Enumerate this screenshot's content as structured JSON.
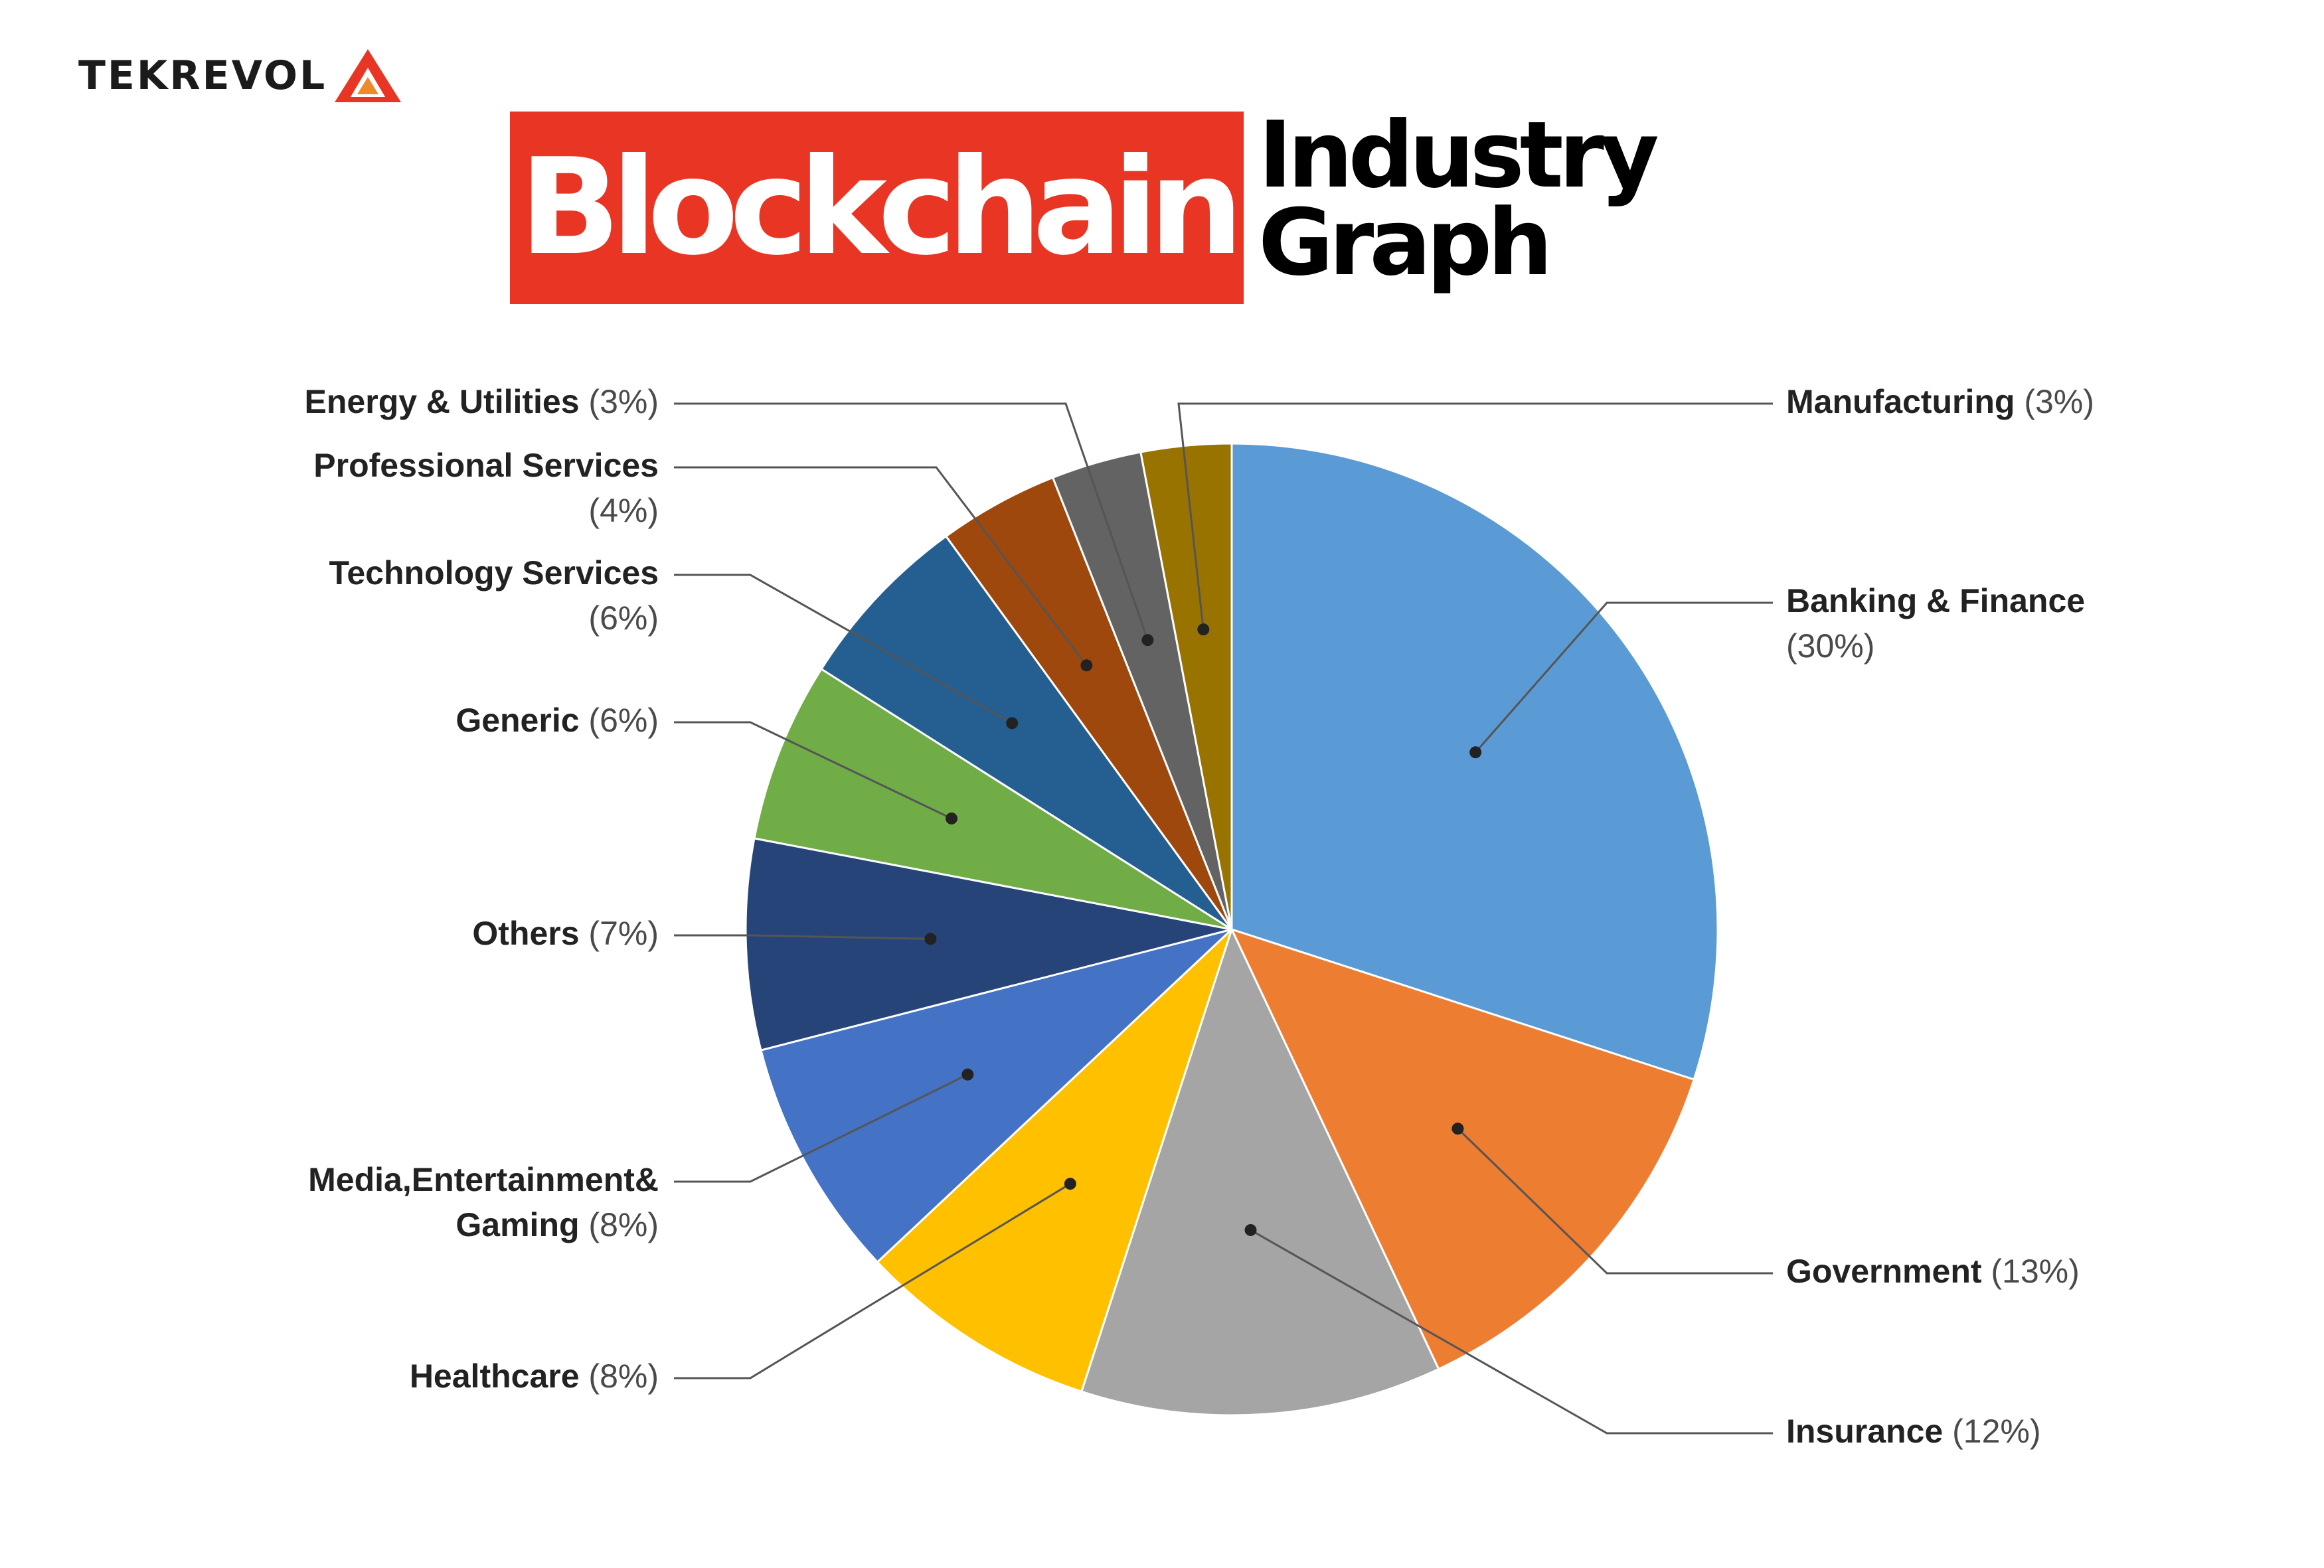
{
  "brand": {
    "name": "TEKREVOL",
    "logo_icon": "triangle-logo-icon",
    "accent": "#e93524"
  },
  "title": {
    "highlight": "Blockchain",
    "line1": "Industry",
    "line2": "Graph"
  },
  "chart_data": {
    "type": "pie",
    "slices": [
      {
        "label": "Banking & Finance",
        "pct_text": "(30%)",
        "value": 30,
        "color": "#5b9bd5"
      },
      {
        "label": "Government",
        "pct_text": "(13%)",
        "value": 13,
        "color": "#ed7d31"
      },
      {
        "label": "Insurance",
        "pct_text": "(12%)",
        "value": 12,
        "color": "#a5a5a5"
      },
      {
        "label": "Healthcare",
        "pct_text": "(8%)",
        "value": 8,
        "color": "#ffc000"
      },
      {
        "label": "Media,Entertainment&",
        "label2": "Gaming",
        "pct_text": "(8%)",
        "value": 8,
        "color": "#4472c4"
      },
      {
        "label": "Others",
        "pct_text": "(7%)",
        "value": 7,
        "color": "#264478"
      },
      {
        "label": "Generic",
        "pct_text": "(6%)",
        "value": 6,
        "color": "#70ad47"
      },
      {
        "label": "Technology Services",
        "pct_text": "(6%)",
        "value": 6,
        "color": "#255e91"
      },
      {
        "label": "Professional Services",
        "pct_text": "(4%)",
        "value": 4,
        "color": "#9e480e"
      },
      {
        "label": "Energy & Utilities",
        "pct_text": "(3%)",
        "value": 3,
        "color": "#636363"
      },
      {
        "label": "Manufacturing",
        "pct_text": "(3%)",
        "value": 3,
        "color": "#997300"
      }
    ]
  }
}
